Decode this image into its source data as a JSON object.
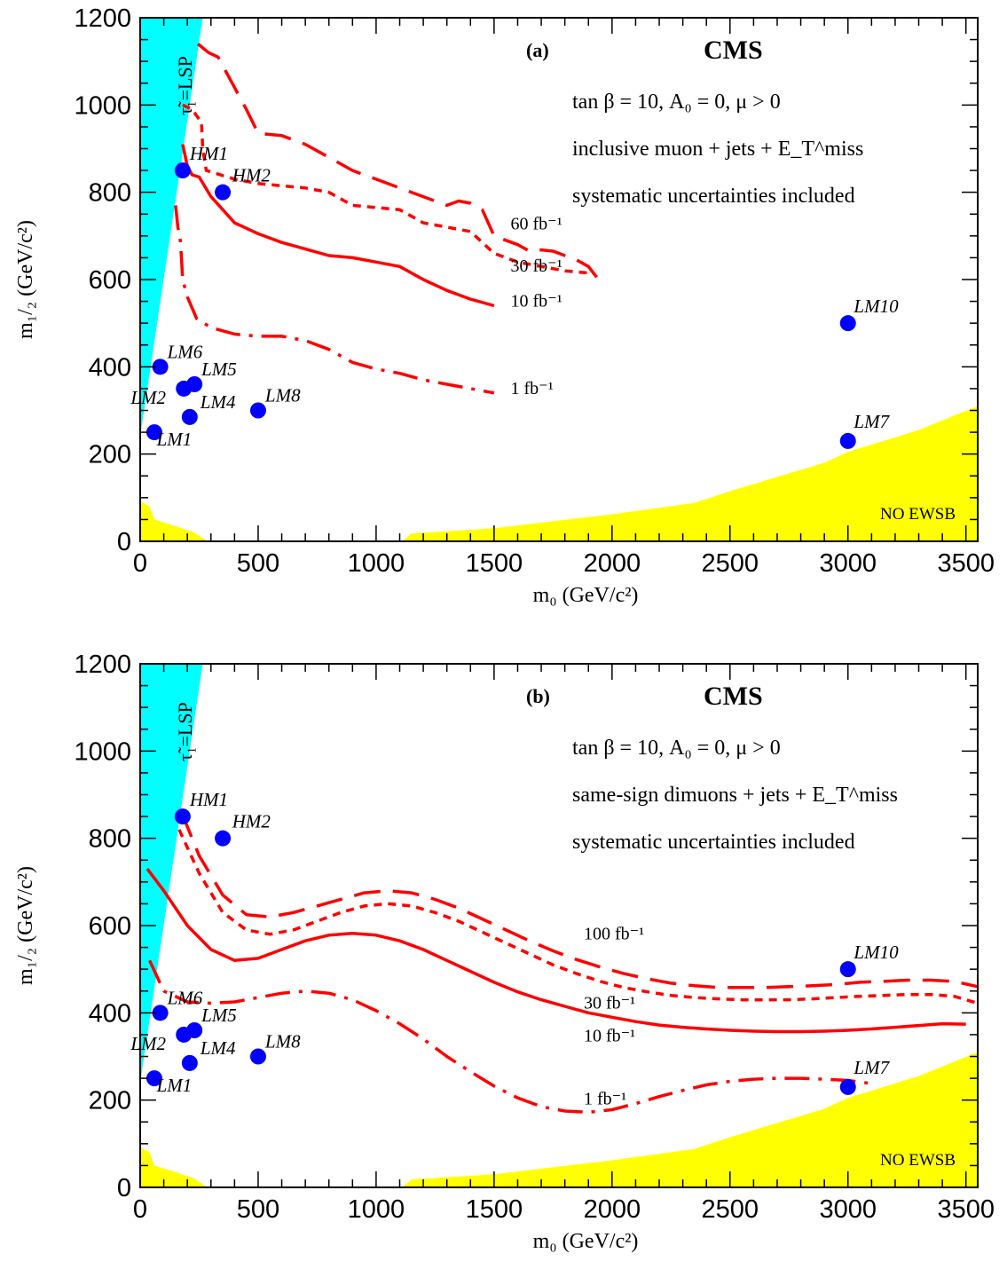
{
  "chart_data": [
    {
      "type": "line",
      "panel_label": "(a)",
      "experiment": "CMS",
      "info_lines": [
        "tan β = 10, A₀ = 0, μ > 0",
        "inclusive muon + jets + E_T^miss",
        "systematic uncertainties included"
      ],
      "xlabel": "m₀ (GeV/c²)",
      "ylabel": "m₁/₂ (GeV/c²)",
      "xlim": [
        0,
        3550
      ],
      "ylim": [
        0,
        1200
      ],
      "xticks": [
        0,
        500,
        1000,
        1500,
        2000,
        2500,
        3000,
        3500
      ],
      "yticks": [
        0,
        200,
        400,
        600,
        800,
        1000,
        1200
      ],
      "regions": [
        {
          "name": "stau-lsp",
          "label": "τ̃₁=LSP",
          "color": "#00ffff",
          "polygon": [
            [
              0,
              240
            ],
            [
              0,
              1200
            ],
            [
              265,
              1200
            ]
          ]
        },
        {
          "name": "no-ewsb",
          "label": "NO EWSB",
          "color": "#ffff00",
          "polygon": [
            [
              1110,
              0
            ],
            [
              1150,
              18
            ],
            [
              1500,
              30
            ],
            [
              2000,
              62
            ],
            [
              2350,
              88
            ],
            [
              2500,
              115
            ],
            [
              2900,
              180
            ],
            [
              3000,
              205
            ],
            [
              3300,
              255
            ],
            [
              3550,
              310
            ],
            [
              3550,
              0
            ]
          ]
        },
        {
          "name": "lep-excluded",
          "label": "",
          "color": "#ffff00",
          "polygon": [
            [
              0,
              0
            ],
            [
              0,
              92
            ],
            [
              40,
              80
            ],
            [
              60,
              50
            ],
            [
              150,
              35
            ],
            [
              230,
              20
            ],
            [
              285,
              0
            ]
          ]
        }
      ],
      "series": [
        {
          "name": "60 fb⁻¹",
          "style": "longdash",
          "x": [
            245,
            290,
            330,
            350,
            400,
            450,
            500,
            600,
            700,
            800,
            900,
            1000,
            1100,
            1200,
            1300,
            1350,
            1400,
            1450,
            1500,
            1550,
            1600,
            1650,
            1700,
            1750,
            1800,
            1850,
            1900,
            1950
          ],
          "y": [
            1140,
            1120,
            1110,
            1090,
            1040,
            990,
            935,
            930,
            910,
            880,
            850,
            830,
            810,
            790,
            770,
            780,
            775,
            760,
            700,
            690,
            680,
            665,
            668,
            665,
            655,
            645,
            630,
            595
          ]
        },
        {
          "name": "30 fb⁻¹",
          "style": "shortdash",
          "x": [
            180,
            220,
            260,
            265,
            280,
            400,
            500,
            600,
            700,
            800,
            900,
            1000,
            1100,
            1200,
            1300,
            1400,
            1500,
            1600,
            1700,
            1800,
            1900
          ],
          "y": [
            1000,
            990,
            960,
            900,
            850,
            830,
            820,
            815,
            810,
            800,
            770,
            765,
            760,
            730,
            720,
            710,
            660,
            640,
            630,
            620,
            615
          ]
        },
        {
          "name": "10 fb⁻¹",
          "style": "solid",
          "x": [
            180,
            200,
            220,
            250,
            300,
            400,
            500,
            600,
            700,
            800,
            900,
            1000,
            1100,
            1200,
            1300,
            1400,
            1500
          ],
          "y": [
            910,
            860,
            840,
            835,
            790,
            730,
            705,
            685,
            670,
            655,
            650,
            640,
            630,
            600,
            575,
            555,
            540
          ]
        },
        {
          "name": "1 fb⁻¹",
          "style": "dashdot",
          "x": [
            150,
            160,
            170,
            175,
            180,
            200,
            240,
            300,
            400,
            500,
            600,
            700,
            800,
            900,
            1000,
            1100,
            1200,
            1300,
            1400,
            1500
          ],
          "y": [
            770,
            720,
            690,
            650,
            600,
            560,
            510,
            490,
            475,
            470,
            470,
            460,
            440,
            410,
            395,
            385,
            370,
            360,
            350,
            340
          ]
        }
      ],
      "series_labels": [
        {
          "text": "60 fb⁻¹",
          "x": 1540,
          "y": 715
        },
        {
          "text": "30 fb⁻¹",
          "x": 1540,
          "y": 618
        },
        {
          "text": "10 fb⁻¹",
          "x": 1540,
          "y": 538
        },
        {
          "text": "1 fb⁻¹",
          "x": 1540,
          "y": 338
        }
      ],
      "benchmarks": [
        {
          "name": "LM1",
          "x": 60,
          "y": 250,
          "lx": 70,
          "ly": 220
        },
        {
          "name": "LM2",
          "x": 185,
          "y": 350,
          "lx": -40,
          "ly": 315
        },
        {
          "name": "LM4",
          "x": 210,
          "y": 285,
          "lx": 255,
          "ly": 305
        },
        {
          "name": "LM5",
          "x": 230,
          "y": 360,
          "lx": 260,
          "ly": 380
        },
        {
          "name": "LM6",
          "x": 85,
          "y": 400,
          "lx": 115,
          "ly": 420
        },
        {
          "name": "LM7",
          "x": 3000,
          "y": 230,
          "lx": 3025,
          "ly": 260
        },
        {
          "name": "LM8",
          "x": 500,
          "y": 300,
          "lx": 530,
          "ly": 320
        },
        {
          "name": "LM10",
          "x": 3000,
          "y": 500,
          "lx": 3025,
          "ly": 525
        },
        {
          "name": "HM1",
          "x": 180,
          "y": 850,
          "lx": 210,
          "ly": 875
        },
        {
          "name": "HM2",
          "x": 350,
          "y": 800,
          "lx": 390,
          "ly": 825
        }
      ]
    },
    {
      "type": "line",
      "panel_label": "(b)",
      "experiment": "CMS",
      "info_lines": [
        "tan β = 10, A₀ = 0, μ > 0",
        "same-sign dimuons + jets + E_T^miss",
        "systematic uncertainties included"
      ],
      "xlabel": "m₀ (GeV/c²)",
      "ylabel": "m₁/₂ (GeV/c²)",
      "xlim": [
        0,
        3550
      ],
      "ylim": [
        0,
        1200
      ],
      "xticks": [
        0,
        500,
        1000,
        1500,
        2000,
        2500,
        3000,
        3500
      ],
      "yticks": [
        0,
        200,
        400,
        600,
        800,
        1000,
        1200
      ],
      "regions": [
        {
          "name": "stau-lsp",
          "label": "τ̃₁=LSP",
          "color": "#00ffff",
          "polygon": [
            [
              0,
              240
            ],
            [
              0,
              1200
            ],
            [
              265,
              1200
            ]
          ]
        },
        {
          "name": "no-ewsb",
          "label": "NO EWSB",
          "color": "#ffff00",
          "polygon": [
            [
              1110,
              0
            ],
            [
              1150,
              18
            ],
            [
              1500,
              30
            ],
            [
              2000,
              62
            ],
            [
              2350,
              88
            ],
            [
              2500,
              115
            ],
            [
              2900,
              180
            ],
            [
              3000,
              205
            ],
            [
              3300,
              255
            ],
            [
              3550,
              310
            ],
            [
              3550,
              0
            ]
          ]
        },
        {
          "name": "lep-excluded",
          "label": "",
          "color": "#ffff00",
          "polygon": [
            [
              0,
              0
            ],
            [
              0,
              92
            ],
            [
              40,
              80
            ],
            [
              60,
              50
            ],
            [
              150,
              35
            ],
            [
              230,
              20
            ],
            [
              285,
              0
            ]
          ]
        }
      ],
      "series": [
        {
          "name": "100 fb⁻¹",
          "style": "longdash",
          "x": [
            175,
            250,
            350,
            450,
            550,
            650,
            750,
            850,
            950,
            1050,
            1150,
            1250,
            1350,
            1450,
            1550,
            1650,
            1750,
            1850,
            1950,
            2050,
            2150,
            2250,
            2350,
            2450,
            2550,
            2650,
            2750,
            2850,
            2950,
            3050,
            3150,
            3250,
            3350,
            3450,
            3550
          ],
          "y": [
            860,
            760,
            670,
            625,
            620,
            630,
            645,
            660,
            675,
            680,
            675,
            660,
            640,
            615,
            590,
            565,
            542,
            522,
            505,
            490,
            478,
            468,
            462,
            458,
            458,
            458,
            460,
            462,
            465,
            470,
            472,
            475,
            475,
            472,
            460
          ]
        },
        {
          "name": "30 fb⁻¹",
          "style": "shortdash",
          "x": [
            165,
            250,
            350,
            450,
            550,
            650,
            750,
            850,
            950,
            1050,
            1150,
            1250,
            1350,
            1450,
            1550,
            1650,
            1750,
            1850,
            1950,
            2050,
            2150,
            2250,
            2350,
            2450,
            2550,
            2650,
            2750,
            2850,
            2950,
            3050,
            3150,
            3250,
            3350,
            3450,
            3550
          ],
          "y": [
            820,
            720,
            630,
            590,
            580,
            590,
            610,
            630,
            645,
            650,
            645,
            630,
            610,
            585,
            560,
            535,
            510,
            490,
            472,
            458,
            448,
            440,
            435,
            432,
            430,
            430,
            430,
            432,
            435,
            438,
            440,
            442,
            442,
            438,
            422
          ]
        },
        {
          "name": "10 fb⁻¹",
          "style": "solid",
          "x": [
            30,
            100,
            200,
            300,
            400,
            500,
            600,
            700,
            800,
            900,
            1000,
            1100,
            1200,
            1300,
            1400,
            1500,
            1600,
            1700,
            1800,
            1900,
            2000,
            2100,
            2200,
            2300,
            2400,
            2500,
            2600,
            2700,
            2800,
            2900,
            3000,
            3100,
            3200,
            3300,
            3400,
            3500
          ],
          "y": [
            730,
            680,
            600,
            545,
            520,
            525,
            545,
            565,
            578,
            582,
            578,
            565,
            545,
            520,
            495,
            470,
            448,
            430,
            415,
            400,
            390,
            380,
            372,
            367,
            363,
            360,
            358,
            357,
            357,
            358,
            360,
            363,
            367,
            371,
            375,
            374
          ]
        },
        {
          "name": "1 fb⁻¹",
          "style": "dashdot",
          "x": [
            40,
            100,
            200,
            300,
            400,
            500,
            600,
            700,
            800,
            900,
            1000,
            1100,
            1200,
            1300,
            1400,
            1500,
            1600,
            1700,
            1800,
            1900,
            2000,
            2100,
            2200,
            2300,
            2400,
            2500,
            2600,
            2700,
            2800,
            2900,
            3000,
            3100
          ],
          "y": [
            520,
            450,
            425,
            422,
            425,
            435,
            445,
            450,
            445,
            430,
            405,
            375,
            340,
            300,
            265,
            232,
            205,
            185,
            175,
            172,
            178,
            192,
            208,
            222,
            235,
            243,
            248,
            250,
            250,
            248,
            245,
            238
          ]
        }
      ],
      "series_labels": [
        {
          "text": "100 fb⁻¹",
          "x": 1850,
          "y": 568
        },
        {
          "text": "30 fb⁻¹",
          "x": 1850,
          "y": 410
        },
        {
          "text": "10 fb⁻¹",
          "x": 1850,
          "y": 335
        },
        {
          "text": "1 fb⁻¹",
          "x": 1850,
          "y": 190
        }
      ],
      "benchmarks": [
        {
          "name": "LM1",
          "x": 60,
          "y": 250,
          "lx": 70,
          "ly": 220
        },
        {
          "name": "LM2",
          "x": 185,
          "y": 350,
          "lx": -40,
          "ly": 315
        },
        {
          "name": "LM4",
          "x": 210,
          "y": 285,
          "lx": 255,
          "ly": 305
        },
        {
          "name": "LM5",
          "x": 230,
          "y": 360,
          "lx": 260,
          "ly": 380
        },
        {
          "name": "LM6",
          "x": 85,
          "y": 400,
          "lx": 115,
          "ly": 420
        },
        {
          "name": "LM7",
          "x": 3000,
          "y": 230,
          "lx": 3025,
          "ly": 260
        },
        {
          "name": "LM8",
          "x": 500,
          "y": 300,
          "lx": 530,
          "ly": 320
        },
        {
          "name": "LM10",
          "x": 3000,
          "y": 500,
          "lx": 3025,
          "ly": 525
        },
        {
          "name": "HM1",
          "x": 180,
          "y": 850,
          "lx": 210,
          "ly": 875
        },
        {
          "name": "HM2",
          "x": 350,
          "y": 800,
          "lx": 390,
          "ly": 825
        }
      ]
    }
  ],
  "colors": {
    "curves": "#ff0000",
    "markers": "#0000ff",
    "lsp_region": "#00ffff",
    "ewsb_region": "#ffff00"
  }
}
